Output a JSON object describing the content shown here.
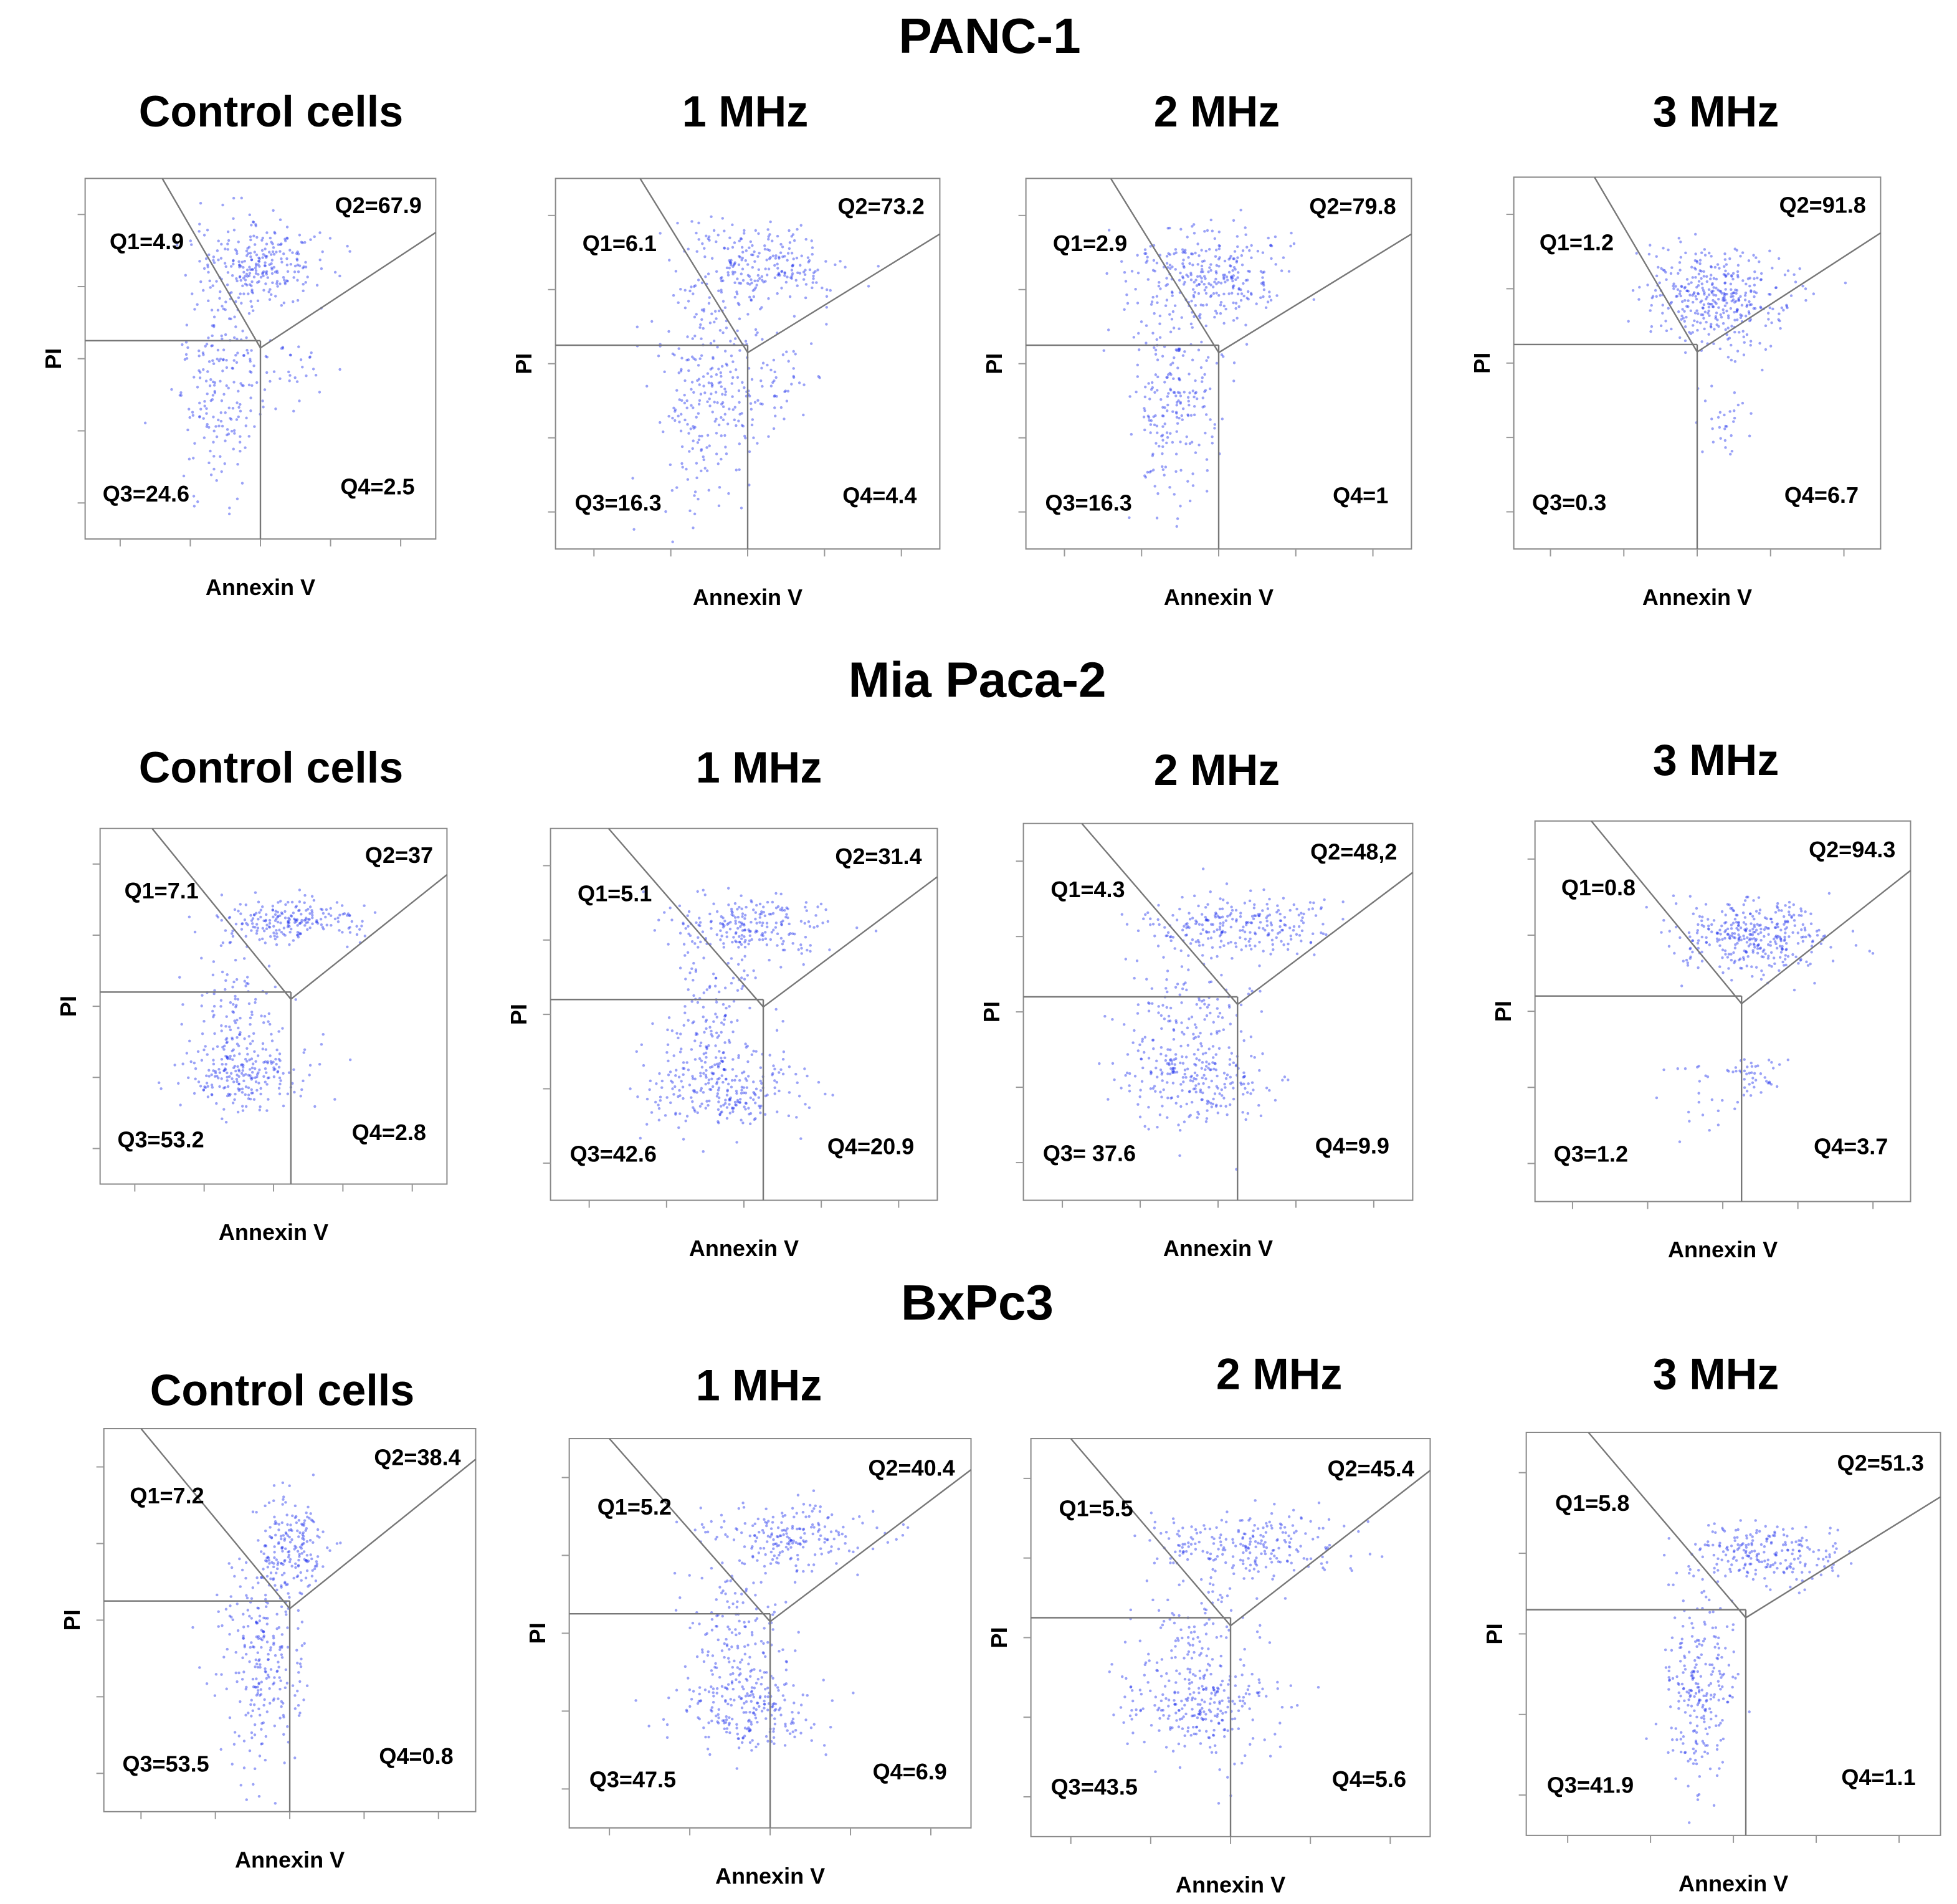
{
  "x_label": "Annexin V",
  "y_label": "PI",
  "sections": [
    {
      "title": "PANC-1",
      "panels": [
        {
          "title": "Control cells",
          "quadrants": [
            "Q1=4.9",
            "Q2=67.9",
            "Q3=24.6",
            "Q4=2.5"
          ]
        },
        {
          "title": "1 MHz",
          "quadrants": [
            "Q1=6.1",
            "Q2=73.2",
            "Q3=16.3",
            "Q4=4.4"
          ]
        },
        {
          "title": "2 MHz",
          "quadrants": [
            "Q1=2.9",
            "Q2=79.8",
            "Q3=16.3",
            "Q4=1"
          ]
        },
        {
          "title": "3 MHz",
          "quadrants": [
            "Q1=1.2",
            "Q2=91.8",
            "Q3=0.3",
            "Q4=6.7"
          ]
        }
      ]
    },
    {
      "title": "Mia Paca-2",
      "panels": [
        {
          "title": "Control cells",
          "quadrants": [
            "Q1=7.1",
            "Q2=37",
            "Q3=53.2",
            "Q4=2.8"
          ]
        },
        {
          "title": "1 MHz",
          "quadrants": [
            "Q1=5.1",
            "Q2=31.4",
            "Q3=42.6",
            "Q4=20.9"
          ]
        },
        {
          "title": "2 MHz",
          "quadrants": [
            "Q1=4.3",
            "Q2=48,2",
            "Q3= 37.6",
            "Q4=9.9"
          ]
        },
        {
          "title": "3 MHz",
          "quadrants": [
            "Q1=0.8",
            "Q2=94.3",
            "Q3=1.2",
            "Q4=3.7"
          ]
        }
      ]
    },
    {
      "title": "BxPc3",
      "panels": [
        {
          "title": "Control cells",
          "quadrants": [
            "Q1=7.2",
            "Q2=38.4",
            "Q3=53.5",
            "Q4=0.8"
          ]
        },
        {
          "title": "1 MHz",
          "quadrants": [
            "Q1=5.2",
            "Q2=40.4",
            "Q3=47.5",
            "Q4=6.9"
          ]
        },
        {
          "title": "2 MHz",
          "quadrants": [
            "Q1=5.5",
            "Q2=45.4",
            "Q3=43.5",
            "Q4=5.6"
          ]
        },
        {
          "title": "3 MHz",
          "quadrants": [
            "Q1=5.8",
            "Q2=51.3",
            "Q3=41.9",
            "Q4=1.1"
          ]
        }
      ]
    }
  ]
}
